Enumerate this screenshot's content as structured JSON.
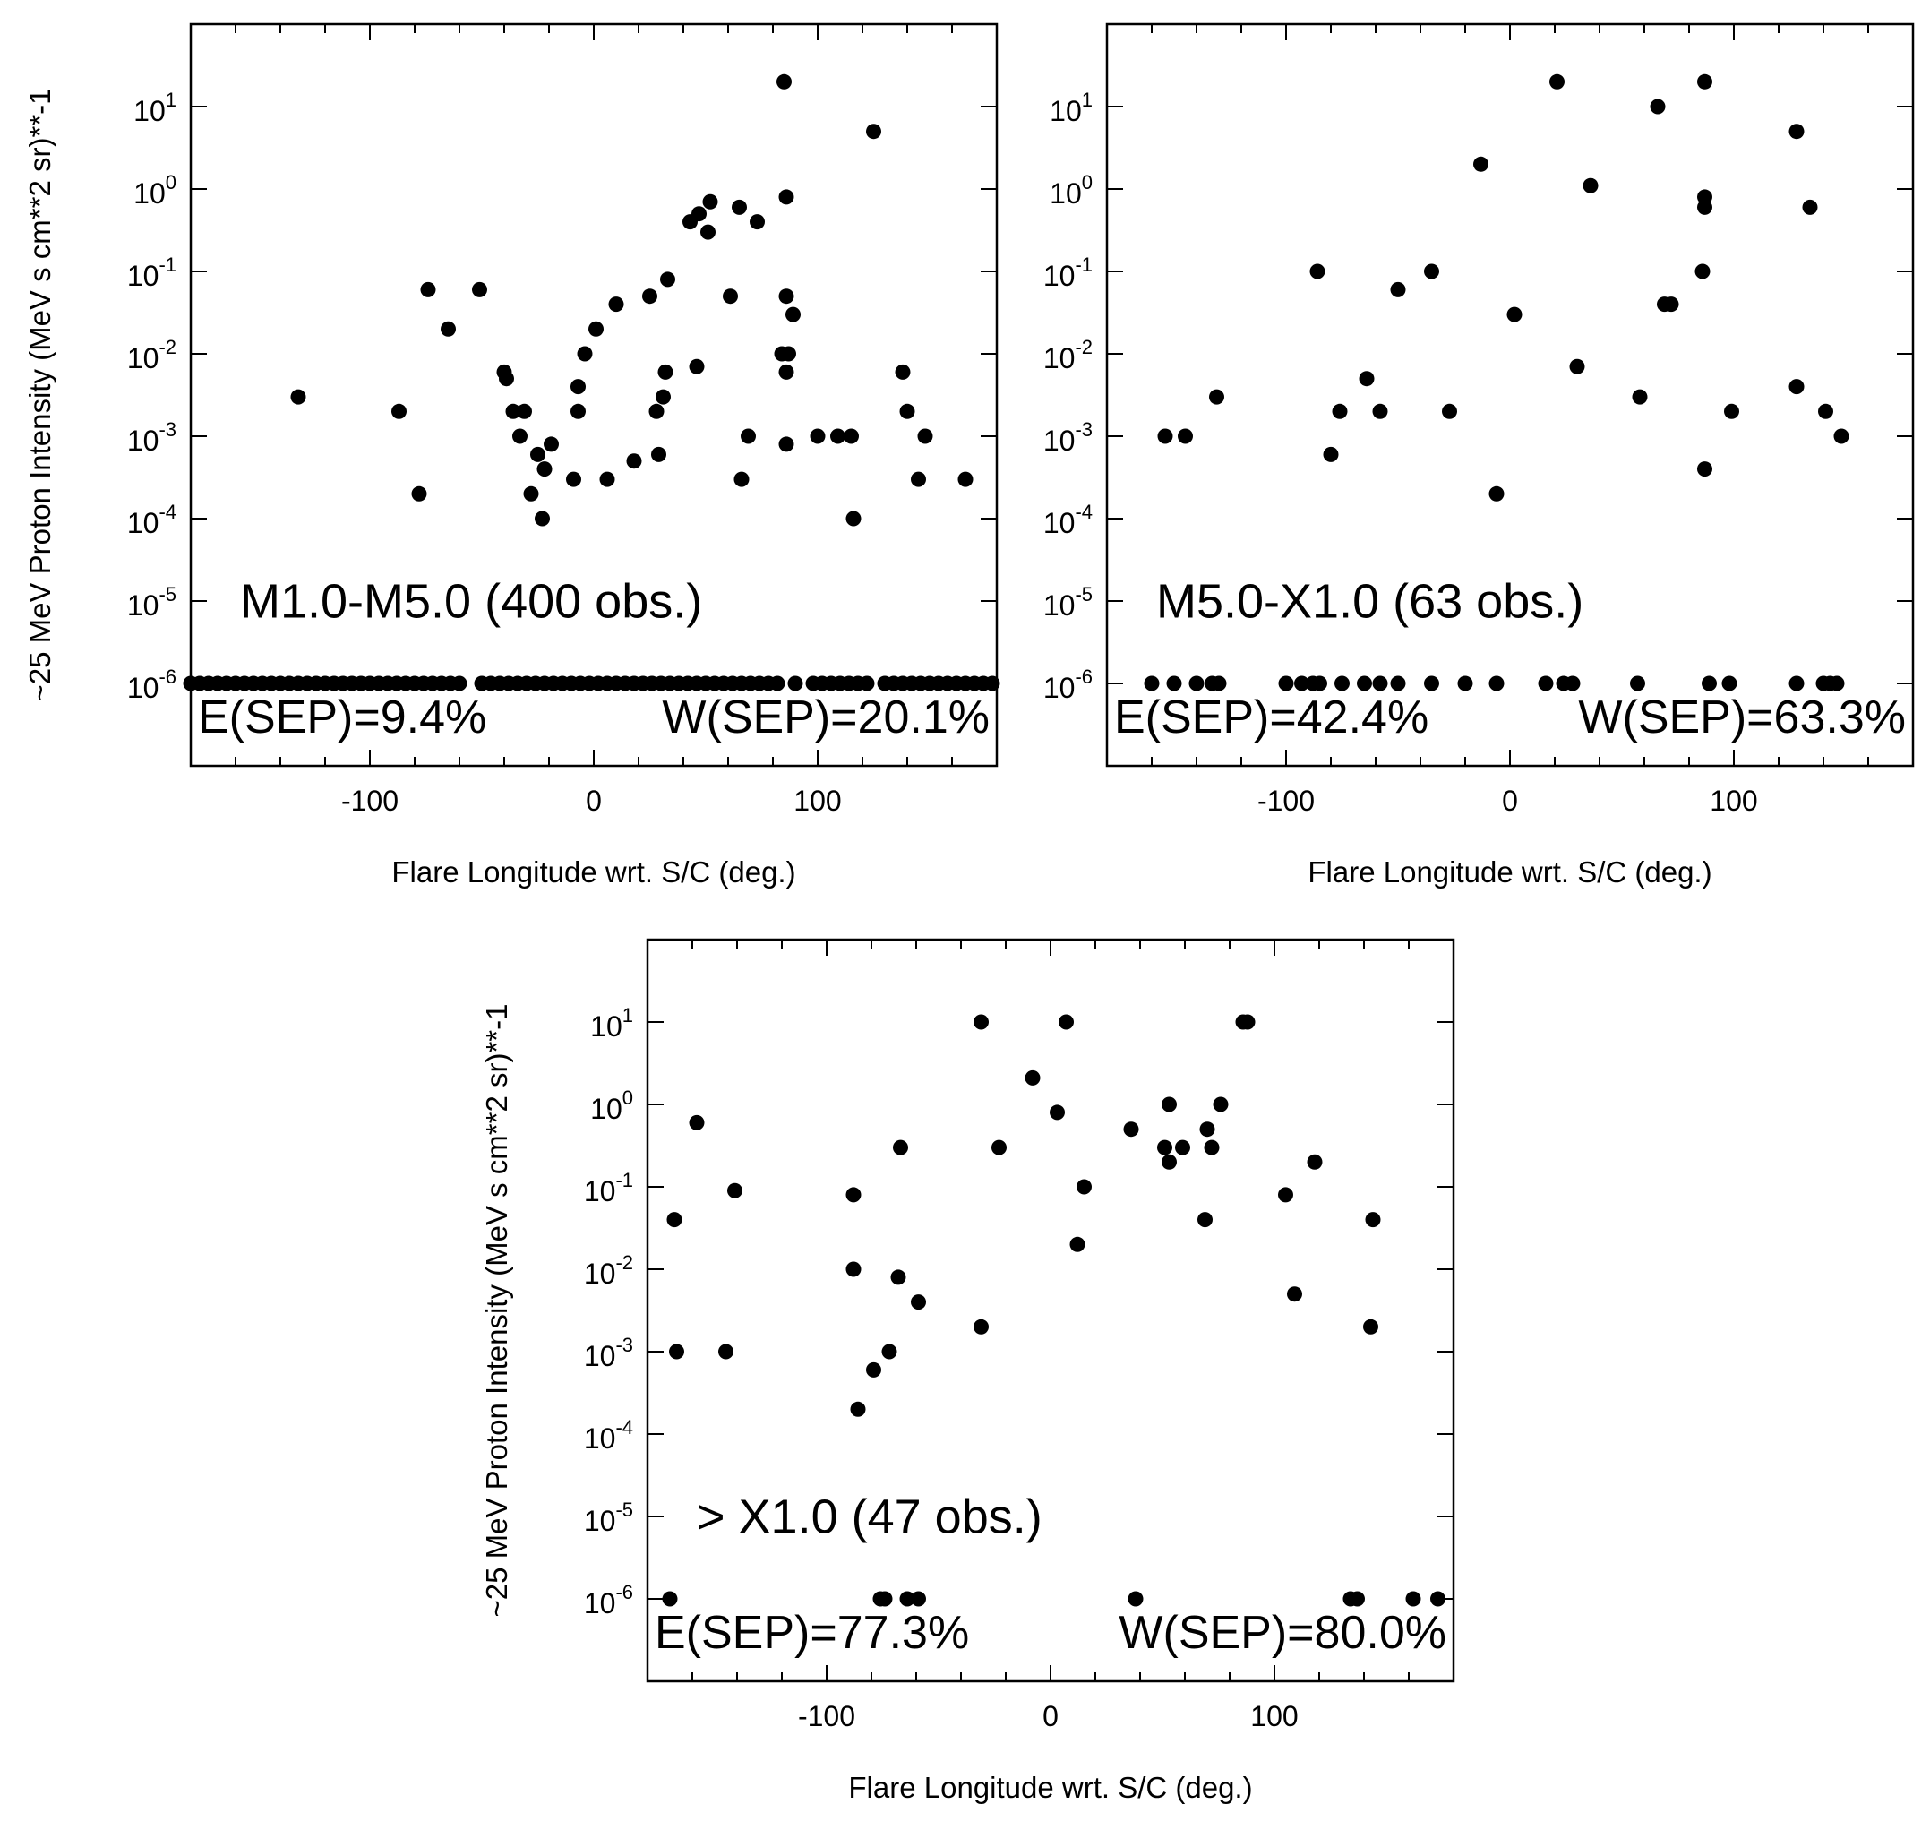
{
  "chart_data": [
    {
      "type": "scatter",
      "title": "M1.0-M5.0 (400 obs.)",
      "xlabel": "Flare Longitude wrt. S/C (deg.)",
      "ylabel": "~25 MeV Proton Intensity (MeV s cm**2 sr)**-1",
      "xlim": [
        -180,
        180
      ],
      "ylim_log10": [
        -7,
        2
      ],
      "yscale": "log",
      "xticks": [
        -100,
        0,
        100
      ],
      "yticks_exp": [
        "-6",
        "-5",
        "-4",
        "-3",
        "-2",
        "-1",
        "0",
        "1"
      ],
      "annotations": {
        "east": "E(SEP)=9.4%",
        "west": "W(SEP)=20.1%"
      },
      "points": [
        [
          -132,
          0.003
        ],
        [
          -87,
          0.002
        ],
        [
          -78,
          0.0002
        ],
        [
          -74,
          0.06
        ],
        [
          -65,
          0.02
        ],
        [
          -51,
          0.06
        ],
        [
          -40,
          0.006
        ],
        [
          -39,
          0.005
        ],
        [
          -36,
          0.002
        ],
        [
          -33,
          0.001
        ],
        [
          -31,
          0.002
        ],
        [
          -28,
          0.0002
        ],
        [
          -25,
          0.0006
        ],
        [
          -23,
          0.0001
        ],
        [
          -22,
          0.0004
        ],
        [
          -19,
          0.0008
        ],
        [
          -9,
          0.0003
        ],
        [
          -7,
          0.002
        ],
        [
          -7,
          0.004
        ],
        [
          -4,
          0.01
        ],
        [
          1,
          0.02
        ],
        [
          6,
          0.0003
        ],
        [
          10,
          0.04
        ],
        [
          18,
          0.0005
        ],
        [
          25,
          0.05
        ],
        [
          28,
          0.002
        ],
        [
          29,
          0.0006
        ],
        [
          31,
          0.003
        ],
        [
          32,
          0.006
        ],
        [
          33,
          0.08
        ],
        [
          43,
          0.4
        ],
        [
          46,
          0.007
        ],
        [
          47,
          0.5
        ],
        [
          51,
          0.3
        ],
        [
          52,
          0.7
        ],
        [
          61,
          0.05
        ],
        [
          65,
          0.6
        ],
        [
          66,
          0.0003
        ],
        [
          69,
          0.001
        ],
        [
          73,
          0.4
        ],
        [
          84,
          0.01
        ],
        [
          85,
          20
        ],
        [
          86,
          0.8
        ],
        [
          86,
          0.05
        ],
        [
          86,
          0.006
        ],
        [
          86,
          0.0008
        ],
        [
          87,
          0.01
        ],
        [
          89,
          0.03
        ],
        [
          100,
          0.001
        ],
        [
          109,
          0.001
        ],
        [
          115,
          0.001
        ],
        [
          116,
          0.0001
        ],
        [
          125,
          5
        ],
        [
          138,
          0.006
        ],
        [
          140,
          0.002
        ],
        [
          145,
          0.0003
        ],
        [
          148,
          0.001
        ],
        [
          166,
          0.0003
        ]
      ],
      "baseline_points": [
        -180,
        -176,
        -172,
        -168,
        -164,
        -160,
        -156,
        -152,
        -148,
        -144,
        -140,
        -136,
        -132,
        -128,
        -124,
        -120,
        -116,
        -112,
        -108,
        -104,
        -100,
        -96,
        -92,
        -88,
        -84,
        -80,
        -76,
        -72,
        -68,
        -64,
        -60,
        -50,
        -46,
        -42,
        -38,
        -34,
        -30,
        -26,
        -22,
        -18,
        -14,
        -10,
        -6,
        -2,
        2,
        6,
        10,
        14,
        18,
        22,
        26,
        30,
        34,
        38,
        42,
        46,
        50,
        54,
        58,
        62,
        66,
        70,
        74,
        78,
        82,
        90,
        98,
        102,
        106,
        110,
        114,
        118,
        122,
        130,
        134,
        138,
        142,
        146,
        150,
        154,
        158,
        162,
        166,
        170,
        174,
        178
      ]
    },
    {
      "type": "scatter",
      "title": "M5.0-X1.0 (63 obs.)",
      "xlabel": "Flare Longitude wrt. S/C (deg.)",
      "ylabel": "",
      "xlim": [
        -180,
        180
      ],
      "ylim_log10": [
        -7,
        2
      ],
      "yscale": "log",
      "xticks": [
        -100,
        0,
        100
      ],
      "yticks_exp": [
        "-6",
        "-5",
        "-4",
        "-3",
        "-2",
        "-1",
        "0",
        "1"
      ],
      "annotations": {
        "east": "E(SEP)=42.4%",
        "west": "W(SEP)=63.3%"
      },
      "points": [
        [
          -154,
          0.001
        ],
        [
          -145,
          0.001
        ],
        [
          -131,
          0.003
        ],
        [
          -86,
          0.1
        ],
        [
          -80,
          0.0006
        ],
        [
          -76,
          0.002
        ],
        [
          -64,
          0.005
        ],
        [
          -58,
          0.002
        ],
        [
          -50,
          0.06
        ],
        [
          -35,
          0.1
        ],
        [
          -27,
          0.002
        ],
        [
          -13,
          2
        ],
        [
          -6,
          0.0002
        ],
        [
          2,
          0.03
        ],
        [
          21,
          20
        ],
        [
          30,
          0.007
        ],
        [
          36,
          1.1
        ],
        [
          58,
          0.003
        ],
        [
          66,
          10
        ],
        [
          69,
          0.04
        ],
        [
          72,
          0.04
        ],
        [
          86,
          0.1
        ],
        [
          87,
          20
        ],
        [
          87,
          0.8
        ],
        [
          87,
          0.6
        ],
        [
          87,
          0.0004
        ],
        [
          99,
          0.002
        ],
        [
          128,
          0.004
        ],
        [
          128,
          5
        ],
        [
          134,
          0.6
        ],
        [
          141,
          0.002
        ],
        [
          148,
          0.001
        ]
      ],
      "baseline_points": [
        -160,
        -150,
        -140,
        -133,
        -130,
        -100,
        -93,
        -88,
        -85,
        -75,
        -65,
        -58,
        -50,
        -35,
        -20,
        -6,
        16,
        24,
        28,
        57,
        89,
        98,
        128,
        140,
        143,
        146
      ]
    },
    {
      "type": "scatter",
      "title": "> X1.0 (47 obs.)",
      "xlabel": "Flare Longitude wrt. S/C (deg.)",
      "ylabel": "~25 MeV Proton Intensity (MeV s cm**2 sr)**-1",
      "xlim": [
        -180,
        180
      ],
      "ylim_log10": [
        -7,
        2
      ],
      "yscale": "log",
      "xticks": [
        -100,
        0,
        100
      ],
      "yticks_exp": [
        "-6",
        "-5",
        "-4",
        "-3",
        "-2",
        "-1",
        "0",
        "1"
      ],
      "annotations": {
        "east": "E(SEP)=77.3%",
        "west": "W(SEP)=80.0%"
      },
      "points": [
        [
          -168,
          0.04
        ],
        [
          -167,
          0.001
        ],
        [
          -158,
          0.6
        ],
        [
          -145,
          0.001
        ],
        [
          -141,
          0.09
        ],
        [
          -88,
          0.08
        ],
        [
          -88,
          0.01
        ],
        [
          -86,
          0.0002
        ],
        [
          -79,
          0.0006
        ],
        [
          -72,
          0.001
        ],
        [
          -68,
          0.008
        ],
        [
          -67,
          0.3
        ],
        [
          -59,
          0.004
        ],
        [
          -31,
          0.002
        ],
        [
          -31,
          10
        ],
        [
          -23,
          0.3
        ],
        [
          -8,
          2.1
        ],
        [
          3,
          0.8
        ],
        [
          7,
          10
        ],
        [
          12,
          0.02
        ],
        [
          15,
          0.1
        ],
        [
          36,
          0.5
        ],
        [
          51,
          0.3
        ],
        [
          53,
          0.2
        ],
        [
          53,
          1
        ],
        [
          59,
          0.3
        ],
        [
          69,
          0.04
        ],
        [
          70,
          0.5
        ],
        [
          72,
          0.3
        ],
        [
          76,
          1
        ],
        [
          86,
          10
        ],
        [
          88,
          10
        ],
        [
          105,
          0.08
        ],
        [
          109,
          0.005
        ],
        [
          118,
          0.2
        ],
        [
          143,
          0.002
        ],
        [
          144,
          0.04
        ]
      ],
      "baseline_points": [
        -170,
        -76,
        -74,
        -64,
        -59,
        38,
        134,
        137,
        162,
        173
      ]
    }
  ]
}
